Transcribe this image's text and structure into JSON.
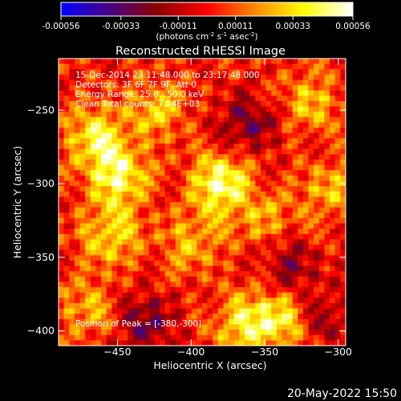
{
  "colorbar": {
    "tick_labels": [
      "-0.00056",
      "-0.00033",
      "-0.00011",
      "0.00011",
      "0.00033",
      "0.00056"
    ],
    "tick_values": [
      -0.00056,
      -0.00033,
      -0.00011,
      0.00011,
      0.00033,
      0.00056
    ],
    "range": [
      -0.00056,
      0.00056
    ],
    "unit_main": "(photons cm",
    "unit_sup1": "-2",
    "unit_mid1": " s",
    "unit_sup2": "-1",
    "unit_mid2": " asec",
    "unit_sup3": "-2",
    "unit_end": ")",
    "colors": [
      "#0000ff",
      "#4b0082",
      "#8b0000",
      "#ff0000",
      "#ff8c00",
      "#ffff00",
      "#ffffff"
    ]
  },
  "chart_data": {
    "type": "heatmap",
    "title": "Reconstructed RHESSI Image",
    "xlabel": "Heliocentric X (arcsec)",
    "ylabel": "Heliocentric Y (arcsec)",
    "xlim": [
      -490,
      -295
    ],
    "ylim": [
      -410,
      -215
    ],
    "x_ticks": [
      -450,
      -400,
      -350,
      -300
    ],
    "x_tick_labels": [
      "−450",
      "−400",
      "−350",
      "−300"
    ],
    "y_ticks": [
      -250,
      -300,
      -350,
      -400
    ],
    "y_tick_labels": [
      "−250",
      "−300",
      "−350",
      "−400"
    ],
    "annotations": [
      "15-Dec-2014 23:11:48.000 to 23:17:48.000",
      "Detectors: 3F 6F 7F 9F, Att 0",
      "Energy Range: 25.0 - 50.0 keV",
      "Clean      Total counts: 7.54E+03"
    ],
    "peak_label": "Position of Peak = [-380,-300]",
    "peak": [
      -380,
      -300
    ],
    "bright_regions": [
      {
        "x": -380,
        "y": -300,
        "level": 1.0
      },
      {
        "x": -450,
        "y": -295,
        "level": 0.9
      },
      {
        "x": -465,
        "y": -268,
        "level": 0.75
      },
      {
        "x": -455,
        "y": -335,
        "level": 0.7
      },
      {
        "x": -338,
        "y": -392,
        "level": 0.75
      },
      {
        "x": -365,
        "y": -395,
        "level": 0.7
      },
      {
        "x": -320,
        "y": -245,
        "level": 0.55
      },
      {
        "x": -305,
        "y": -305,
        "level": 0.5
      },
      {
        "x": -425,
        "y": -250,
        "level": 0.55
      },
      {
        "x": -470,
        "y": -385,
        "level": 0.45
      },
      {
        "x": -400,
        "y": -340,
        "level": 0.5
      },
      {
        "x": -350,
        "y": -325,
        "level": 0.45
      }
    ],
    "dim_regions": [
      {
        "x": -360,
        "y": -258,
        "level": -0.6
      },
      {
        "x": -430,
        "y": -395,
        "level": -0.6
      },
      {
        "x": -335,
        "y": -355,
        "level": -0.5
      },
      {
        "x": -310,
        "y": -390,
        "level": -0.45
      }
    ]
  },
  "footer": {
    "timestamp": "20-May-2022 15:50"
  }
}
